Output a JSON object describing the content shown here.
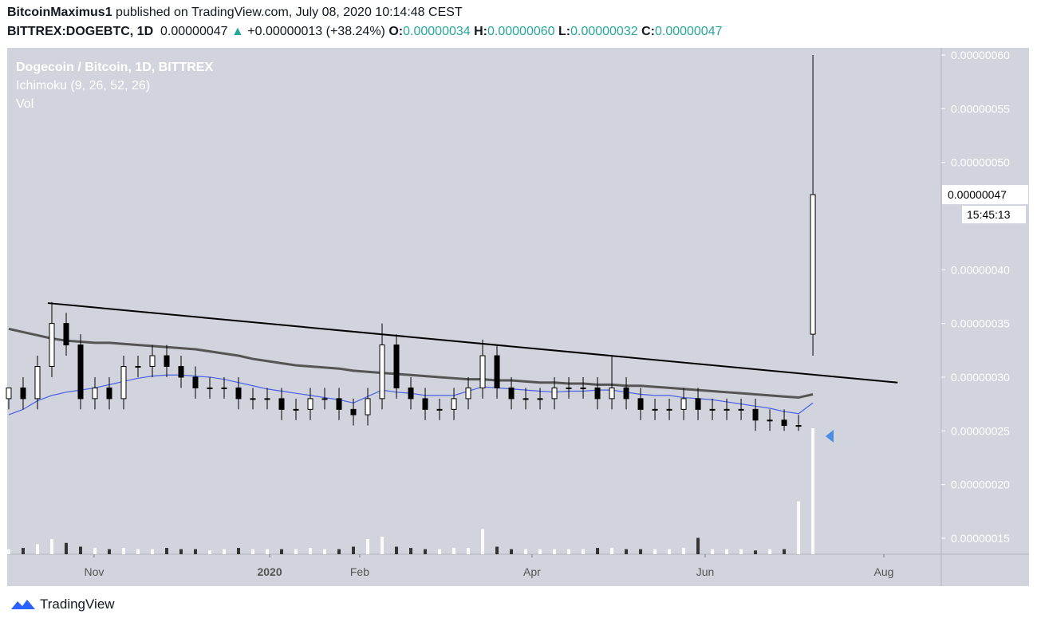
{
  "header": {
    "author": "BitcoinMaximus1",
    "published": " published on TradingView.com, July 08, 2020 10:14:48 CEST",
    "symbol": "BITTREX:DOGEBTC, 1D",
    "last": "0.00000047",
    "arrow": "▲",
    "change": "+0.00000013 (+38.24%)",
    "o_label": "O:",
    "o": "0.00000034",
    "h_label": "H:",
    "h": "0.00000060",
    "l_label": "L:",
    "l": "0.00000032",
    "c_label": "C:",
    "c": "0.00000047"
  },
  "footer": {
    "brand": "TradingView"
  },
  "chart_data": {
    "type": "candlestick",
    "legend": [
      "Dogecoin / Bitcoin, 1D, BITTREX",
      "Ichimoku (9, 26, 52, 26)",
      "Vol"
    ],
    "open": [
      2.8e-07,
      2.9e-07,
      2.8e-07,
      3.1e-07,
      3.5e-07,
      3.3e-07,
      2.8e-07,
      2.9e-07,
      2.8e-07,
      3.1e-07,
      3.1e-07,
      3.2e-07,
      3.1e-07,
      3e-07,
      2.9e-07,
      2.9e-07,
      2.9e-07,
      2.8e-07,
      2.8e-07,
      2.8e-07,
      2.7e-07,
      2.7e-07,
      2.8e-07,
      2.8e-07,
      2.7e-07,
      2.65e-07,
      2.8e-07,
      3.3e-07,
      2.9e-07,
      2.8e-07,
      2.7e-07,
      2.7e-07,
      2.8e-07,
      2.9e-07,
      3.2e-07,
      2.9e-07,
      2.8e-07,
      2.8e-07,
      2.8e-07,
      2.9e-07,
      2.9e-07,
      2.9e-07,
      2.8e-07,
      2.9e-07,
      2.8e-07,
      2.7e-07,
      2.7e-07,
      2.7e-07,
      2.8e-07,
      2.7e-07,
      2.7e-07,
      2.7e-07,
      2.7e-07,
      2.6e-07,
      2.6e-07,
      2.55e-07,
      3.4e-07
    ],
    "high": [
      2.9e-07,
      3e-07,
      3.2e-07,
      3.7e-07,
      3.6e-07,
      3.4e-07,
      3e-07,
      3e-07,
      3.2e-07,
      3.2e-07,
      3.3e-07,
      3.3e-07,
      3.2e-07,
      3.1e-07,
      3e-07,
      3e-07,
      3e-07,
      2.9e-07,
      2.9e-07,
      2.9e-07,
      2.8e-07,
      2.9e-07,
      2.9e-07,
      2.9e-07,
      2.8e-07,
      2.9e-07,
      3.5e-07,
      3.4e-07,
      3e-07,
      2.9e-07,
      2.8e-07,
      2.9e-07,
      3e-07,
      3.35e-07,
      3.3e-07,
      3e-07,
      2.9e-07,
      2.9e-07,
      3e-07,
      3e-07,
      3e-07,
      3e-07,
      3.2e-07,
      3e-07,
      2.9e-07,
      2.8e-07,
      2.8e-07,
      2.9e-07,
      2.9e-07,
      2.8e-07,
      2.8e-07,
      2.8e-07,
      2.8e-07,
      2.7e-07,
      2.7e-07,
      2.65e-07,
      6e-07
    ],
    "low": [
      2.7e-07,
      2.7e-07,
      2.7e-07,
      3e-07,
      3.2e-07,
      2.7e-07,
      2.7e-07,
      2.7e-07,
      2.7e-07,
      3e-07,
      3e-07,
      3e-07,
      2.9e-07,
      2.8e-07,
      2.8e-07,
      2.8e-07,
      2.7e-07,
      2.7e-07,
      2.7e-07,
      2.6e-07,
      2.6e-07,
      2.6e-07,
      2.7e-07,
      2.6e-07,
      2.55e-07,
      2.55e-07,
      2.7e-07,
      2.8e-07,
      2.7e-07,
      2.6e-07,
      2.6e-07,
      2.6e-07,
      2.7e-07,
      2.8e-07,
      2.8e-07,
      2.7e-07,
      2.7e-07,
      2.7e-07,
      2.7e-07,
      2.8e-07,
      2.8e-07,
      2.7e-07,
      2.7e-07,
      2.7e-07,
      2.6e-07,
      2.6e-07,
      2.6e-07,
      2.6e-07,
      2.6e-07,
      2.6e-07,
      2.6e-07,
      2.6e-07,
      2.5e-07,
      2.5e-07,
      2.5e-07,
      2.5e-07,
      3.2e-07
    ],
    "close": [
      2.9e-07,
      2.8e-07,
      3.1e-07,
      3.5e-07,
      3.3e-07,
      2.8e-07,
      2.9e-07,
      2.8e-07,
      3.1e-07,
      3.1e-07,
      3.2e-07,
      3.1e-07,
      3e-07,
      2.9e-07,
      2.9e-07,
      2.9e-07,
      2.8e-07,
      2.8e-07,
      2.8e-07,
      2.7e-07,
      2.7e-07,
      2.8e-07,
      2.8e-07,
      2.7e-07,
      2.65e-07,
      2.8e-07,
      3.3e-07,
      2.9e-07,
      2.8e-07,
      2.7e-07,
      2.7e-07,
      2.8e-07,
      2.9e-07,
      3.2e-07,
      2.9e-07,
      2.8e-07,
      2.8e-07,
      2.8e-07,
      2.9e-07,
      2.9e-07,
      2.9e-07,
      2.8e-07,
      2.9e-07,
      2.8e-07,
      2.7e-07,
      2.7e-07,
      2.7e-07,
      2.8e-07,
      2.7e-07,
      2.7e-07,
      2.7e-07,
      2.7e-07,
      2.6e-07,
      2.6e-07,
      2.55e-07,
      2.55e-07,
      4.7e-07
    ],
    "volume": [
      4,
      5,
      8,
      12,
      9,
      6,
      5,
      4,
      5,
      4,
      4,
      5,
      4,
      4,
      3,
      4,
      5,
      4,
      4,
      4,
      4,
      5,
      4,
      4,
      6,
      12,
      14,
      6,
      5,
      4,
      4,
      5,
      5,
      20,
      6,
      4,
      4,
      4,
      4,
      4,
      4,
      5,
      5,
      4,
      4,
      4,
      4,
      5,
      13,
      4,
      4,
      4,
      3,
      4,
      4,
      42,
      100
    ],
    "lines": [
      {
        "color": "#555555",
        "values": [
          3.45e-07,
          3.42e-07,
          3.39e-07,
          3.36e-07,
          3.34e-07,
          3.33e-07,
          3.32e-07,
          3.32e-07,
          3.31e-07,
          3.3e-07,
          3.29e-07,
          3.28e-07,
          3.27e-07,
          3.26e-07,
          3.24e-07,
          3.22e-07,
          3.2e-07,
          3.17e-07,
          3.15e-07,
          3.13e-07,
          3.11e-07,
          3.1e-07,
          3.09e-07,
          3.08e-07,
          3.06e-07,
          3.05e-07,
          3.04e-07,
          3.03e-07,
          3.02e-07,
          3.01e-07,
          3e-07,
          2.99e-07,
          2.98e-07,
          2.98e-07,
          2.97e-07,
          2.97e-07,
          2.96e-07,
          2.95e-07,
          2.95e-07,
          2.94e-07,
          2.94e-07,
          2.93e-07,
          2.93e-07,
          2.92e-07,
          2.92e-07,
          2.91e-07,
          2.9e-07,
          2.89e-07,
          2.88e-07,
          2.87e-07,
          2.86e-07,
          2.85e-07,
          2.84e-07,
          2.83e-07,
          2.82e-07,
          2.81e-07,
          2.84e-07
        ]
      },
      {
        "color": "#4a5ee8",
        "values": [
          2.65e-07,
          2.7e-07,
          2.78e-07,
          2.83e-07,
          2.86e-07,
          2.88e-07,
          2.9e-07,
          2.93e-07,
          2.96e-07,
          2.99e-07,
          3.01e-07,
          3.02e-07,
          3.02e-07,
          3.01e-07,
          3e-07,
          2.98e-07,
          2.95e-07,
          2.92e-07,
          2.89e-07,
          2.87e-07,
          2.85e-07,
          2.83e-07,
          2.81e-07,
          2.79e-07,
          2.76e-07,
          2.82e-07,
          2.88e-07,
          2.86e-07,
          2.85e-07,
          2.83e-07,
          2.83e-07,
          2.83e-07,
          2.87e-07,
          2.91e-07,
          2.9e-07,
          2.89e-07,
          2.88e-07,
          2.87e-07,
          2.86e-07,
          2.87e-07,
          2.87e-07,
          2.88e-07,
          2.88e-07,
          2.86e-07,
          2.84e-07,
          2.83e-07,
          2.83e-07,
          2.81e-07,
          2.8e-07,
          2.79e-07,
          2.77e-07,
          2.75e-07,
          2.73e-07,
          2.71e-07,
          2.68e-07,
          2.66e-07,
          2.76e-07
        ]
      }
    ],
    "trendline": {
      "color": "#000000",
      "x": [
        2.72,
        61.9
      ],
      "values": [
        3.69e-07,
        2.95e-07
      ]
    },
    "ylim": [
      1.351e-07,
      6.067e-07
    ],
    "yticks": [
      {
        "value": 1.5e-07,
        "label": "0.00000015"
      },
      {
        "value": 2e-07,
        "label": "0.00000020"
      },
      {
        "value": 2.5e-07,
        "label": "0.00000025"
      },
      {
        "value": 3e-07,
        "label": "0.00000030"
      },
      {
        "value": 3.5e-07,
        "label": "0.00000035"
      },
      {
        "value": 4e-07,
        "label": "0.00000040"
      },
      {
        "value": 5e-07,
        "label": "0.00000050"
      },
      {
        "value": 5.5e-07,
        "label": "0.00000055"
      },
      {
        "value": 6e-07,
        "label": "0.00000060"
      }
    ],
    "xlim": [
      -0.11,
      64.94
    ],
    "xticks": [
      {
        "value": 5.94,
        "label": "Nov"
      },
      {
        "value": 18.17,
        "label": "2020"
      },
      {
        "value": 24.44,
        "label": "Feb"
      },
      {
        "value": 36.44,
        "label": "Apr"
      },
      {
        "value": 48.5,
        "label": "Jun"
      },
      {
        "value": 60.94,
        "label": "Aug"
      }
    ],
    "last_price": {
      "value": 4.7e-07,
      "label": "0.00000047",
      "countdown": "15:45:13"
    }
  }
}
